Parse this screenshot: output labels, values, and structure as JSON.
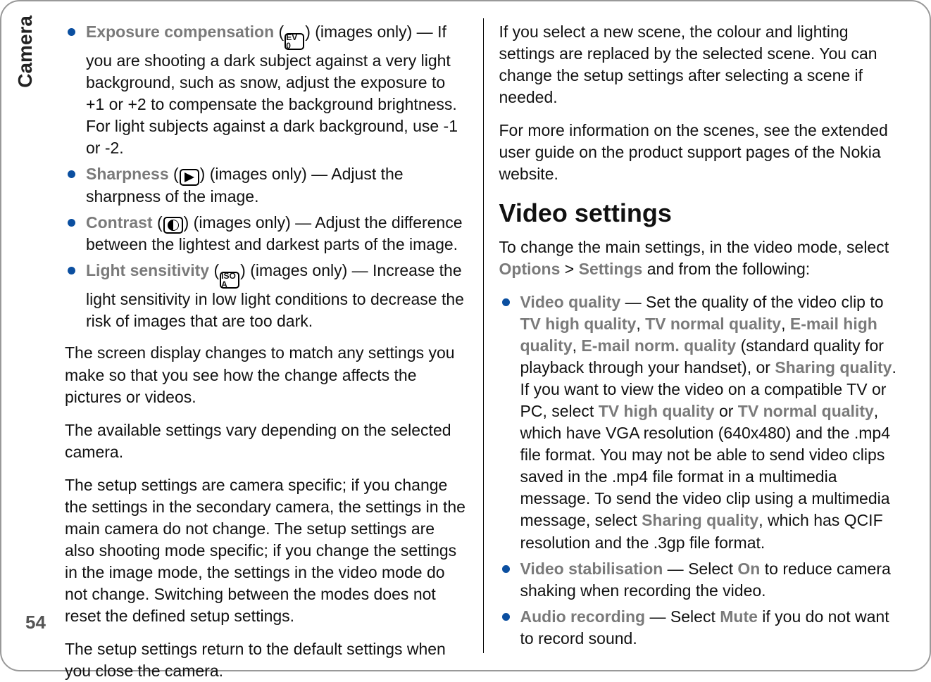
{
  "side_tab": "Camera",
  "page_number": "54",
  "left": {
    "items": [
      {
        "label": "Exposure compensation",
        "icon": "ev-icon",
        "icon_text": "EV 0",
        "qualifier": " (images only)",
        "body": " — If you are shooting a dark subject against a very light background, such as snow, adjust the exposure to +1 or +2 to compensate the background brightness. For light subjects against a dark background, use -1 or -2."
      },
      {
        "label": "Sharpness",
        "icon": "sharp-icon",
        "qualifier": " (images only) ",
        "body": " — Adjust the sharpness of the image."
      },
      {
        "label": "Contrast",
        "icon": "contrast-icon",
        "qualifier": " (images only) ",
        "body": " — Adjust the difference between the lightest and darkest parts of the image."
      },
      {
        "label": "Light sensitivity",
        "icon": "iso-icon",
        "icon_text": "ISO A",
        "qualifier": " (images only) ",
        "body": " — Increase the light sensitivity in low light conditions to decrease the risk of images that are too dark."
      }
    ],
    "p1": "The screen display changes to match any settings you make so that you see how the change affects the pictures or videos.",
    "p2": "The available settings vary depending on the selected camera.",
    "p3": "The setup settings are camera specific; if you change the settings in the secondary camera, the settings in the main camera do not change. The setup settings are also shooting mode specific; if you change the settings in the image mode, the settings in the video mode do not change. Switching between the modes does not reset the defined setup settings.",
    "p4": "The setup settings return to the default settings when you close the camera."
  },
  "right": {
    "p1": "If you select a new scene, the colour and lighting settings are replaced by the selected scene. You can change the setup settings after selecting a scene if needed.",
    "p2": "For more information on the scenes, see the extended user guide on the product support pages of the Nokia website.",
    "heading": "Video settings",
    "intro_a": "To change the main settings, in the video mode, select ",
    "options": "Options",
    "gt": " > ",
    "settings": "Settings",
    "intro_b": " and from the following:",
    "vq": {
      "label": "Video quality",
      "t1": "  — Set the quality of the video clip to ",
      "o1": "TV high quality",
      "c": ", ",
      "o2": "TV normal quality",
      "o3": "E-mail high quality",
      "o4": "E-mail norm. quality",
      "t2": " (standard quality for playback through your handset), or ",
      "o5": "Sharing quality",
      "t3": ". If you want to view the video on a compatible TV or PC, select ",
      "or": " or ",
      "t4": ", which have VGA resolution (640x480) and the .mp4 file format. You may not be able to send video clips saved in the .mp4 file format in a multimedia message. To send the video clip using a multimedia message, select ",
      "t5": ", which has QCIF resolution and the .3gp file format."
    },
    "vs": {
      "label": "Video stabilisation",
      "t1": "  — Select ",
      "o1": "On",
      "t2": " to reduce camera shaking when recording the video."
    },
    "ar": {
      "label": "Audio recording",
      "t1": "  — Select ",
      "o1": "Mute",
      "t2": " if you do not want to record sound."
    }
  }
}
